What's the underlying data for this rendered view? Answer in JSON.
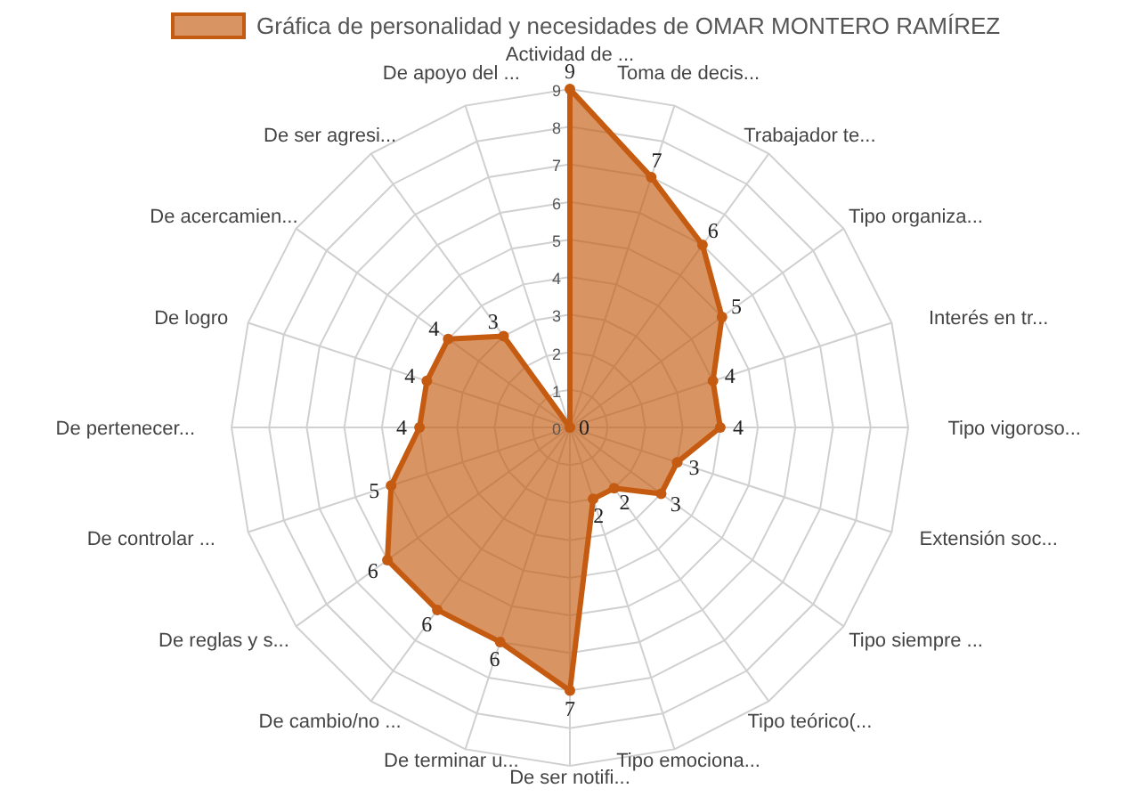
{
  "chart_data": {
    "type": "radar",
    "categories": [
      "Actividad de ...",
      "Toma de decis...",
      "Trabajador te...",
      "Tipo organiza...",
      "Interés en tr...",
      "Tipo vigoroso...",
      "Extensión soc...",
      "Tipo siempre ...",
      "Tipo teórico(...",
      "Tipo emociona...",
      "De ser notifi...",
      "De terminar u...",
      "De cambio/no ...",
      "De reglas y s...",
      "De controlar ...",
      "De pertenecer...",
      "De logro",
      "De acercamien...",
      "De ser agresi...",
      "De apoyo del ..."
    ],
    "series": [
      {
        "name": "Gráfica de personalidad y necesidades de OMAR MONTERO RAMÍREZ",
        "color": "#c55a11",
        "values": [
          9,
          7,
          6,
          5,
          4,
          4,
          3,
          3,
          2,
          2,
          7,
          6,
          6,
          6,
          5,
          4,
          4,
          4,
          3,
          0
        ]
      }
    ],
    "ylim": [
      0,
      9
    ],
    "yticks": [
      0,
      1,
      2,
      3,
      4,
      5,
      6,
      7,
      8,
      9
    ],
    "grid": true,
    "legend": "top",
    "marker": "circle",
    "data_labels": true
  }
}
